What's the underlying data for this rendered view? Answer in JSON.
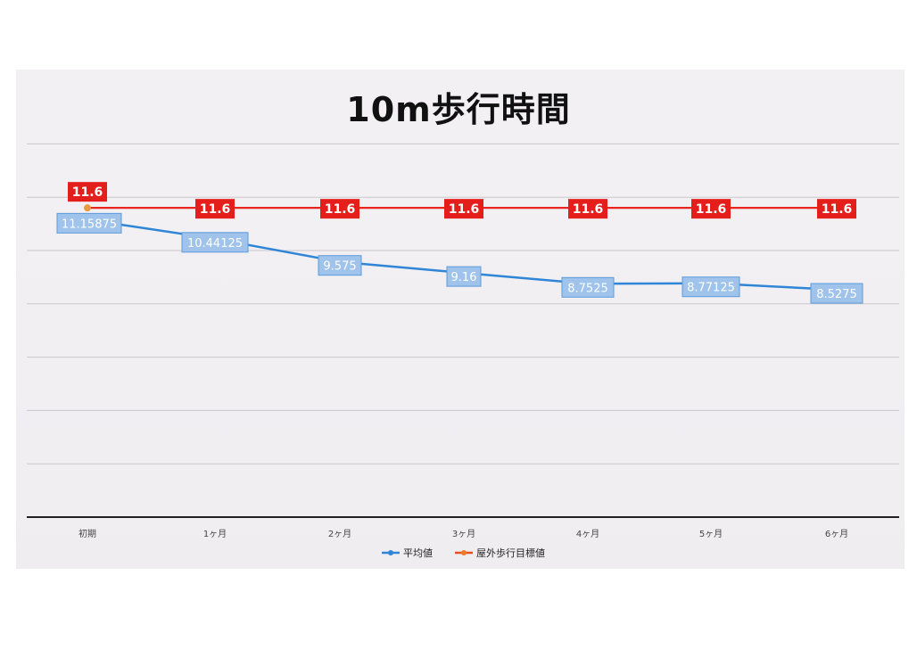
{
  "chart_data": {
    "type": "line",
    "title": "10m歩行時間",
    "categories": [
      "初期",
      "1ヶ月",
      "2ヶ月",
      "3ヶ月",
      "4ヶ月",
      "5ヶ月",
      "6ヶ月"
    ],
    "series": [
      {
        "name": "平均値",
        "color": "#2f85d6",
        "values": [
          11.15875,
          10.44125,
          9.575,
          9.16,
          8.7525,
          8.77125,
          8.5275
        ],
        "labels": [
          "11.15875",
          "10.44125",
          "9.575",
          "9.16",
          "8.7525",
          "8.77125",
          "8.5275"
        ]
      },
      {
        "name": "屋外歩行目標値",
        "color": "#e8261f",
        "values": [
          11.6,
          11.6,
          11.6,
          11.6,
          11.6,
          11.6,
          11.6
        ],
        "labels": [
          "11.6",
          "11.6",
          "11.6",
          "11.6",
          "11.6",
          "11.6",
          "11.6"
        ]
      }
    ],
    "ylim": [
      0,
      14
    ],
    "grid": true,
    "legend": "bottom"
  }
}
